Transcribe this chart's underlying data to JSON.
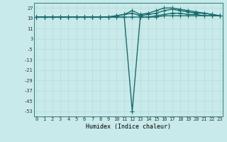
{
  "xlabel": "Humidex (Indice chaleur)",
  "bg_color": "#c8eaea",
  "grid_color": "#c0dede",
  "line_color": "#1a6b6b",
  "xmin": 0,
  "xmax": 23,
  "yticks": [
    27,
    19,
    11,
    3,
    -5,
    -13,
    -21,
    -29,
    -37,
    -45,
    -53
  ],
  "ymin": -57,
  "ymax": 31,
  "line1_x": [
    0,
    1,
    2,
    3,
    4,
    5,
    6,
    7,
    8,
    9,
    10,
    11,
    12,
    13,
    14,
    15,
    16,
    17,
    18,
    19,
    20,
    21,
    22,
    23
  ],
  "line1_y": [
    20,
    20,
    20,
    20,
    20,
    20,
    20,
    20,
    20,
    20,
    20,
    20,
    20,
    20,
    20,
    20,
    21,
    21,
    21,
    21,
    21,
    21,
    21,
    21
  ],
  "line2_x": [
    0,
    1,
    2,
    3,
    4,
    5,
    6,
    7,
    8,
    9,
    10,
    11,
    12,
    13,
    14,
    15,
    16,
    17,
    18,
    19,
    20,
    21,
    22,
    23
  ],
  "line2_y": [
    20,
    20,
    20,
    20,
    20,
    20,
    20,
    20,
    20,
    20,
    21,
    22,
    23,
    21,
    22,
    23,
    25,
    26,
    25,
    24,
    23,
    23,
    22,
    21
  ],
  "line3_x": [
    0,
    1,
    2,
    3,
    4,
    5,
    6,
    7,
    8,
    9,
    10,
    11,
    12,
    13,
    14,
    15,
    16,
    17,
    18,
    19,
    20,
    21,
    22,
    23
  ],
  "line3_y": [
    20,
    20,
    20,
    20,
    20,
    20,
    20,
    20,
    20,
    20,
    21,
    22,
    25,
    22,
    23,
    25,
    27,
    27,
    26,
    25,
    24,
    23,
    22,
    21
  ],
  "line4_x": [
    0,
    1,
    2,
    3,
    4,
    5,
    6,
    7,
    8,
    9,
    10,
    11,
    12,
    13,
    14,
    15,
    16,
    17,
    18,
    19,
    20,
    21,
    22,
    23
  ],
  "line4_y": [
    20,
    20,
    20,
    20,
    20,
    20,
    20,
    20,
    20,
    20,
    20,
    20,
    -53,
    20,
    20,
    21,
    22,
    23,
    23,
    22,
    22,
    21,
    21,
    21
  ],
  "marker": "+",
  "markersize": 4,
  "linewidth": 1.0,
  "tick_fontsize": 5,
  "xlabel_fontsize": 6
}
